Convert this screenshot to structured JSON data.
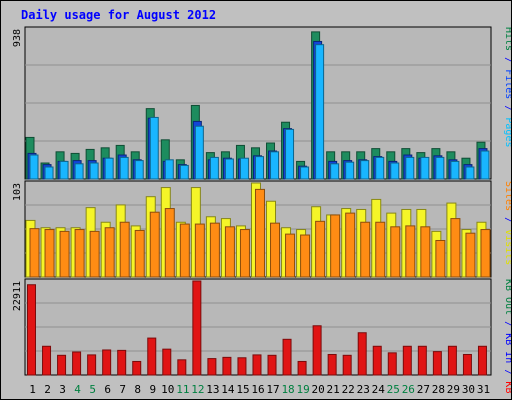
{
  "chart_data": [
    {
      "type": "bar",
      "title": "Daily usage for August 2012",
      "categories": [
        "1",
        "2",
        "3",
        "4",
        "5",
        "6",
        "7",
        "8",
        "9",
        "10",
        "11",
        "12",
        "13",
        "14",
        "15",
        "16",
        "17",
        "18",
        "19",
        "20",
        "21",
        "22",
        "23",
        "24",
        "25",
        "26",
        "27",
        "28",
        "29",
        "30",
        "31"
      ],
      "weekend_days": [
        "4",
        "5",
        "11",
        "12",
        "18",
        "19",
        "25",
        "26"
      ],
      "ymax_label": "938",
      "ylim": [
        0,
        938
      ],
      "grid": true,
      "legend": "right",
      "legend_entries": [
        {
          "text": "Pages",
          "color": "#00c0ff"
        },
        {
          "text": "/",
          "color": "#0000ff"
        },
        {
          "text": "Files",
          "color": "#0040ff"
        },
        {
          "text": "/",
          "color": "#0000ff"
        },
        {
          "text": "Hits",
          "color": "#008040"
        }
      ],
      "series": [
        {
          "name": "Hits",
          "color": "#1d8c5e",
          "values": [
            260,
            100,
            170,
            160,
            185,
            195,
            210,
            170,
            440,
            245,
            120,
            460,
            165,
            170,
            210,
            195,
            225,
            355,
            110,
            920,
            170,
            170,
            170,
            190,
            170,
            190,
            165,
            190,
            170,
            130,
            230
          ]
        },
        {
          "name": "Files",
          "color": "#1245d8",
          "values": [
            160,
            90,
            110,
            115,
            115,
            130,
            150,
            120,
            380,
            110,
            90,
            360,
            120,
            130,
            125,
            145,
            175,
            315,
            80,
            860,
            110,
            115,
            120,
            140,
            110,
            150,
            130,
            145,
            120,
            90,
            190
          ]
        },
        {
          "name": "Pages",
          "color": "#19b6ff",
          "values": [
            150,
            75,
            110,
            95,
            100,
            130,
            135,
            115,
            385,
            120,
            85,
            330,
            135,
            125,
            130,
            140,
            170,
            310,
            75,
            840,
            95,
            105,
            115,
            135,
            100,
            135,
            135,
            135,
            110,
            75,
            175
          ]
        }
      ]
    },
    {
      "type": "bar",
      "ymax_label": "103",
      "ylim": [
        0,
        103
      ],
      "grid": true,
      "legend": "right",
      "legend_entries": [
        {
          "text": "Visits",
          "color": "#e0e000"
        },
        {
          "text": "/",
          "color": "#0000ff"
        },
        {
          "text": "Sites",
          "color": "#ff8000"
        }
      ],
      "series": [
        {
          "name": "Visits",
          "color": "#f5f528",
          "values": [
            62,
            54,
            54,
            54,
            76,
            60,
            79,
            56,
            88,
            98,
            60,
            98,
            66,
            64,
            56,
            103,
            83,
            54,
            52,
            77,
            68,
            75,
            74,
            85,
            70,
            74,
            74,
            50,
            81,
            52,
            60
          ]
        },
        {
          "name": "Sites",
          "color": "#ff8c14",
          "values": [
            53,
            52,
            50,
            52,
            50,
            54,
            60,
            51,
            71,
            75,
            58,
            58,
            59,
            55,
            52,
            96,
            59,
            47,
            46,
            61,
            68,
            70,
            60,
            60,
            55,
            56,
            55,
            40,
            64,
            48,
            52
          ]
        }
      ]
    },
    {
      "type": "bar",
      "ymax_label": "22911",
      "ylim": [
        0,
        22911
      ],
      "grid": true,
      "legend": "right",
      "legend_entries": [
        {
          "text": "KB F",
          "color": "#ff0000"
        },
        {
          "text": "/",
          "color": "#0000ff"
        },
        {
          "text": "KB In",
          "color": "#0000ff"
        },
        {
          "text": "/",
          "color": "#0000ff"
        },
        {
          "text": "KB Out",
          "color": "#008040"
        }
      ],
      "series": [
        {
          "name": "KB F",
          "color": "#e01414",
          "values": [
            22000,
            7000,
            4800,
            5600,
            4900,
            6100,
            6000,
            3300,
            9000,
            6300,
            3700,
            22911,
            4000,
            4300,
            4200,
            4900,
            4800,
            8700,
            3300,
            12000,
            5000,
            4800,
            10300,
            7000,
            5400,
            7000,
            7000,
            5700,
            7000,
            5000,
            7000
          ]
        }
      ]
    }
  ]
}
